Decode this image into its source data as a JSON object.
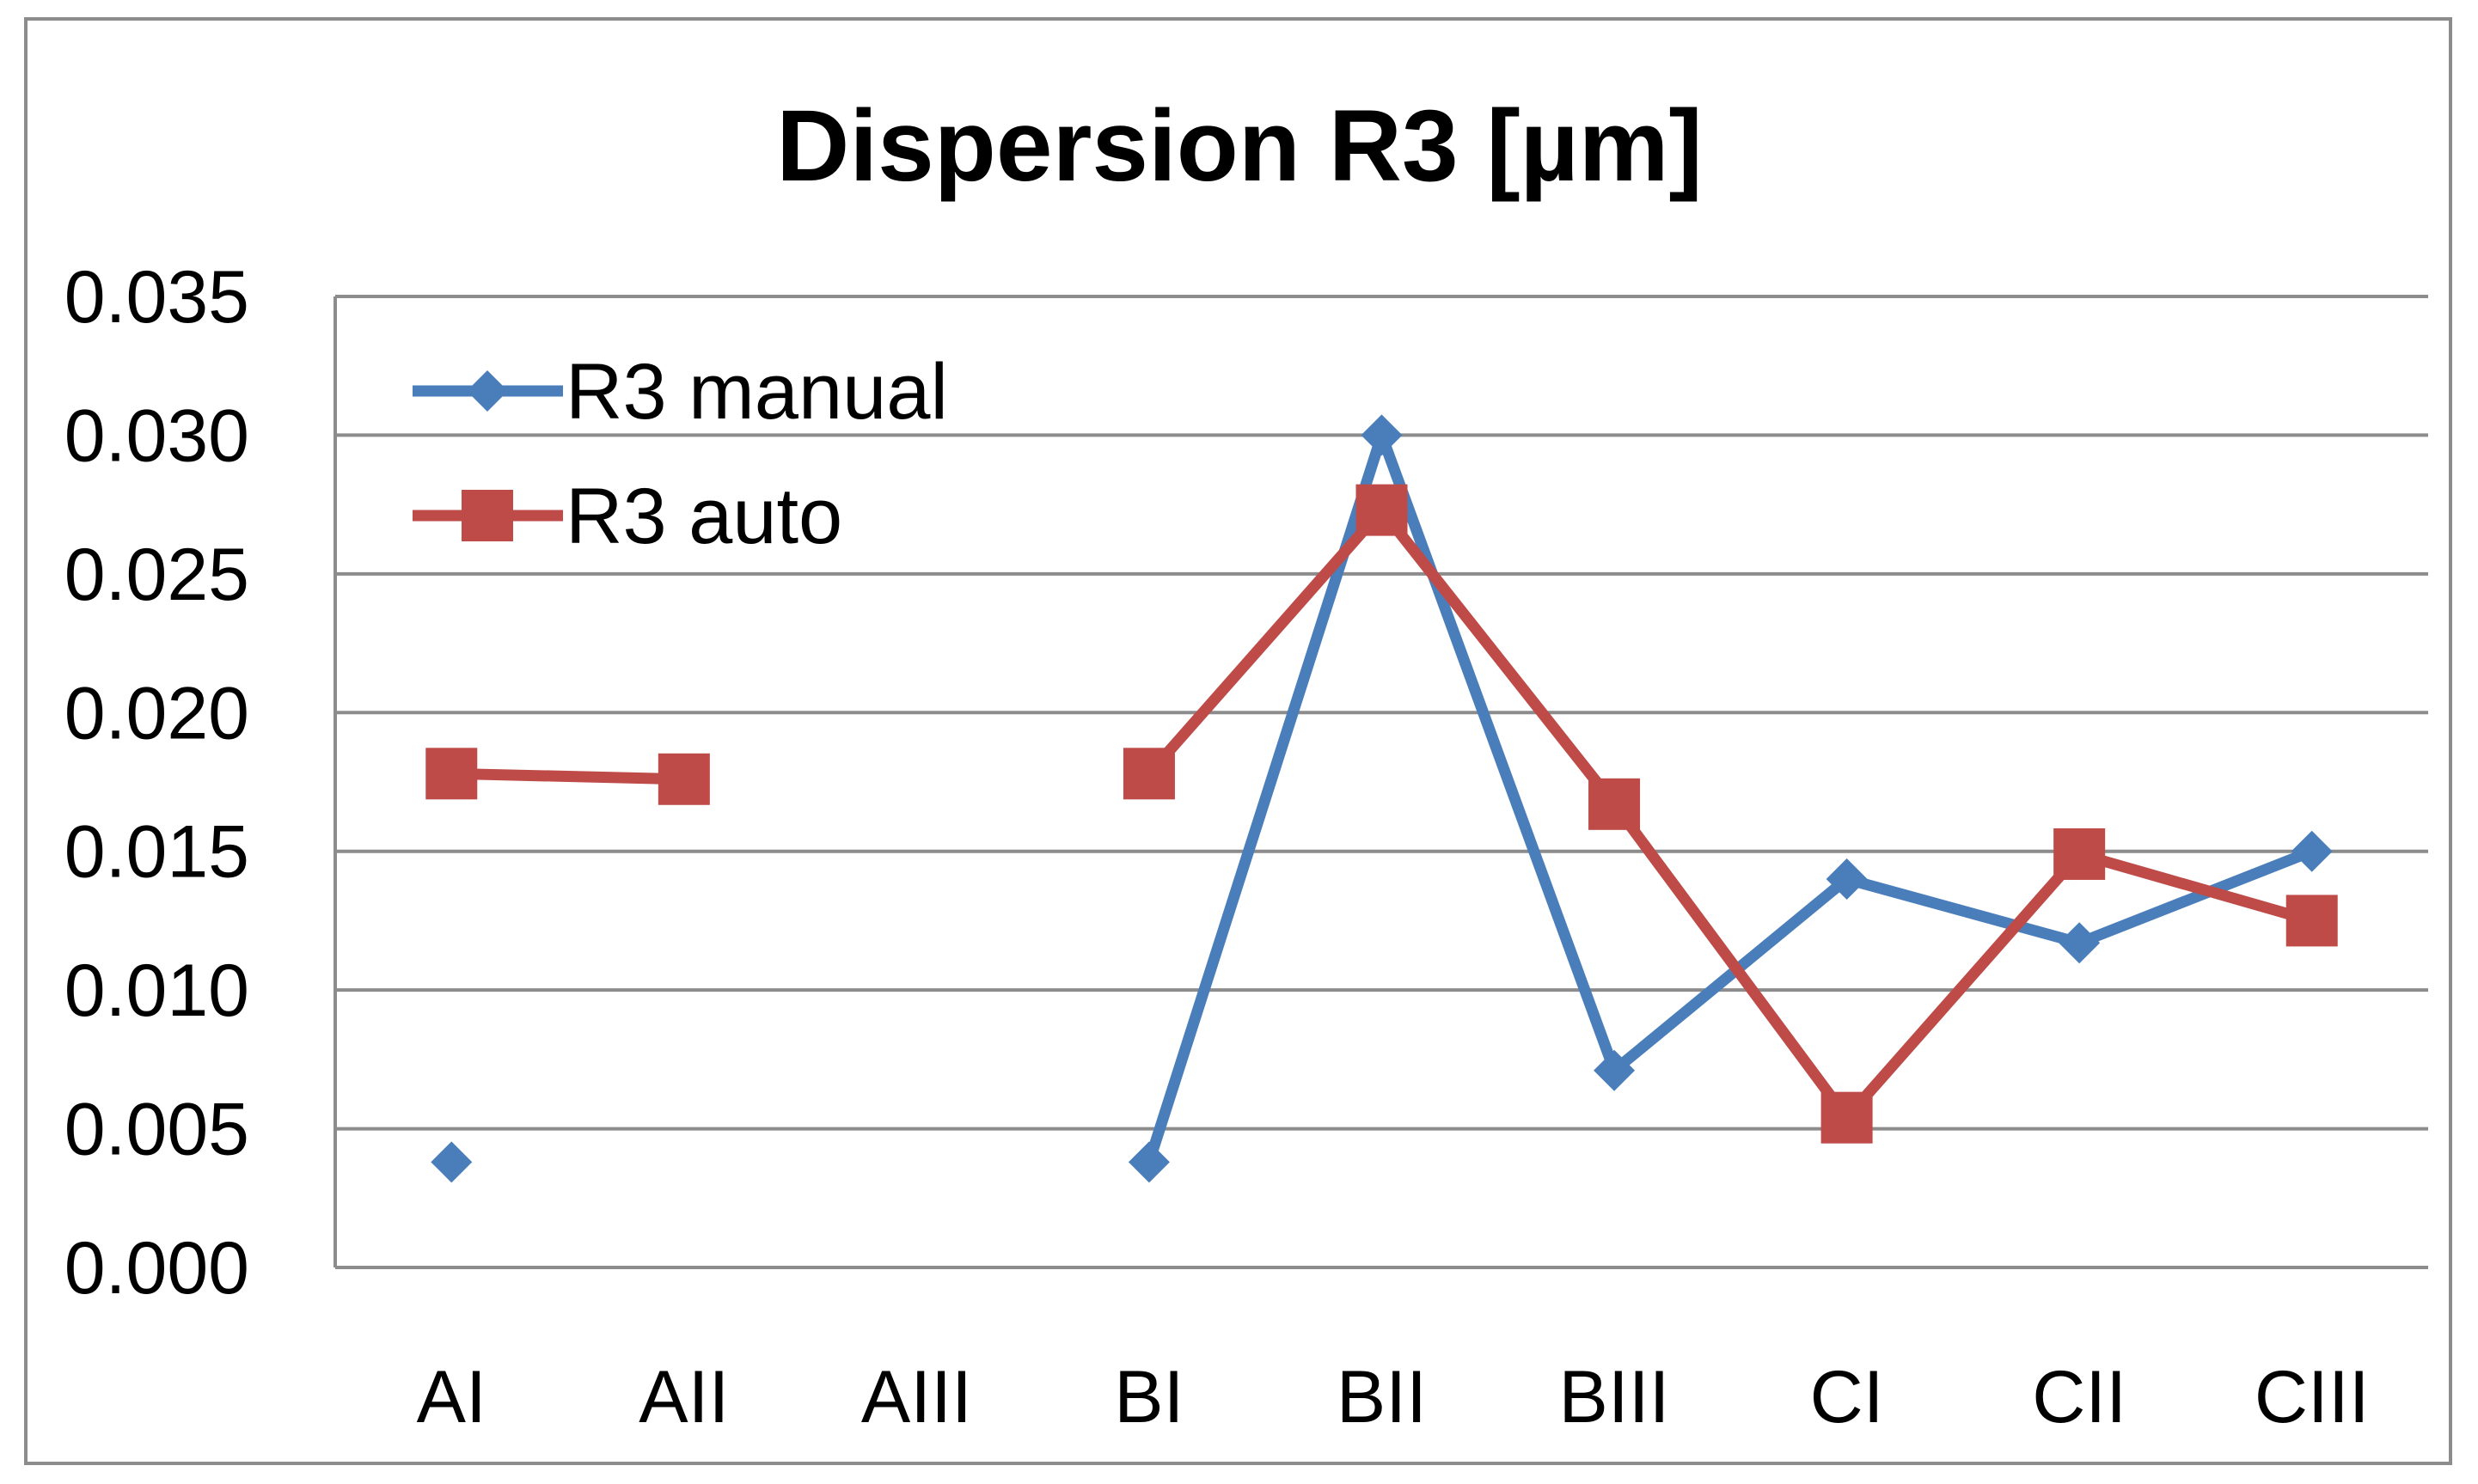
{
  "chart_data": {
    "type": "line",
    "title": "Dispersion R3 [µm]",
    "xlabel": "",
    "ylabel": "",
    "categories": [
      "AI",
      "AII",
      "AIII",
      "BI",
      "BII",
      "BIII",
      "CI",
      "CII",
      "CIII"
    ],
    "ylim": [
      0.0,
      0.035
    ],
    "yticks": [
      "0.000",
      "0.005",
      "0.010",
      "0.015",
      "0.020",
      "0.025",
      "0.030",
      "0.035"
    ],
    "grid": true,
    "legend_position": "top-left",
    "series": [
      {
        "name": "R3 manual",
        "color": "#4a7ebb",
        "marker": "diamond",
        "values": [
          0.0038,
          null,
          null,
          0.0038,
          0.03,
          0.0071,
          0.014,
          0.0117,
          0.015
        ]
      },
      {
        "name": "R3 auto",
        "color": "#be4b48",
        "marker": "square",
        "values": [
          0.0178,
          0.0176,
          null,
          0.0178,
          0.0273,
          0.0167,
          0.0054,
          0.0149,
          0.0125
        ]
      }
    ]
  }
}
